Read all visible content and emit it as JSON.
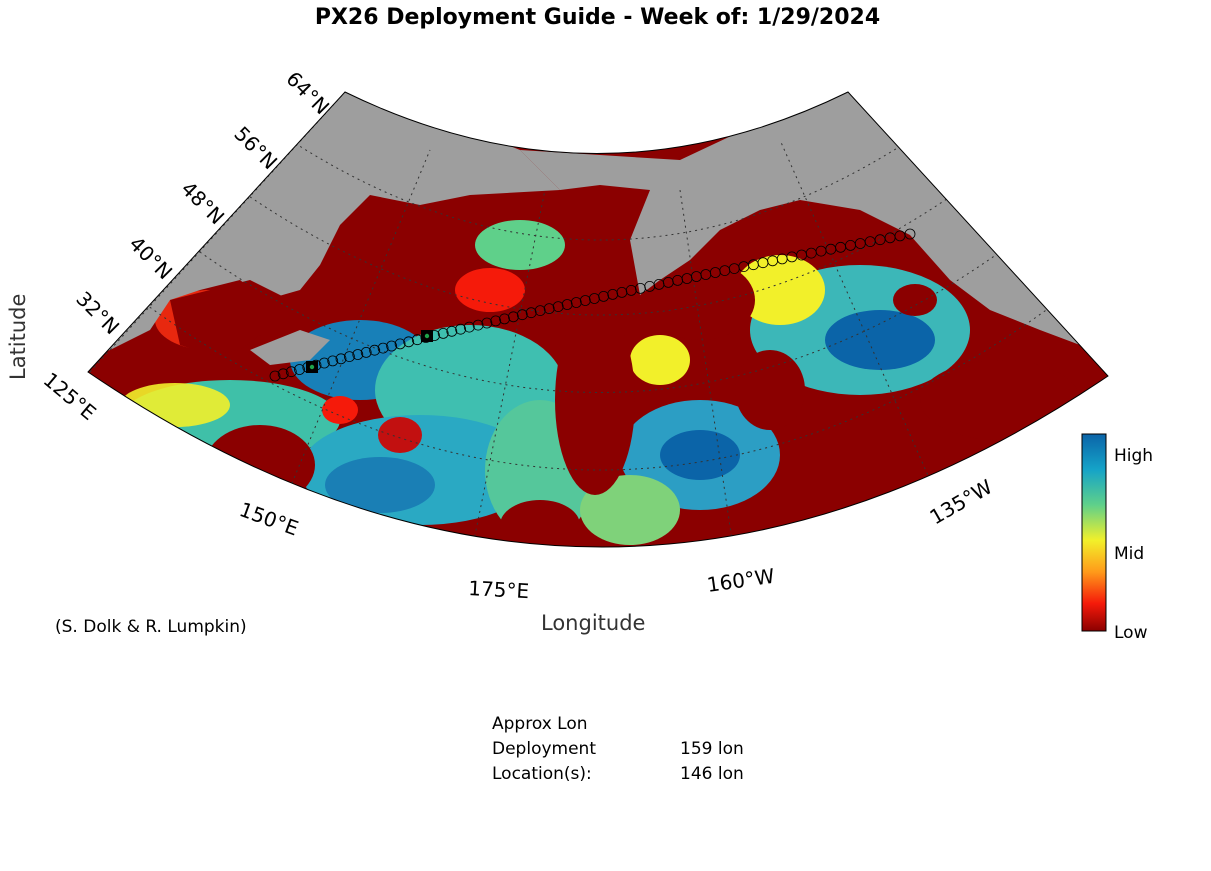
{
  "title": "PX26 Deployment Guide - Week of: 1/29/2024",
  "axes": {
    "ylabel": "Latitude",
    "xlabel": "Longitude",
    "lat_ticks": [
      "32°N",
      "40°N",
      "48°N",
      "56°N",
      "64°N"
    ],
    "lon_ticks": [
      "125°E",
      "150°E",
      "175°E",
      "160°W",
      "135°W"
    ]
  },
  "colorbar": {
    "labels": [
      "High",
      "Mid",
      "Low"
    ],
    "colors": [
      "#0b64a8",
      "#15a3c8",
      "#5fd08a",
      "#f2f02a",
      "#ff9a1a",
      "#f51a0a",
      "#8b0000"
    ]
  },
  "credit": "(S. Dolk & R. Lumpkin)",
  "deployment": {
    "header": "Approx Lon",
    "rows": [
      {
        "key": "Deployment",
        "value": "159 lon"
      },
      {
        "key": "Location(s):",
        "value": "146 lon"
      }
    ]
  },
  "colors": {
    "land": "#9e9e9e",
    "low": "#8b0000",
    "track": "#000000",
    "deploy_marker": "#1fa34a"
  }
}
